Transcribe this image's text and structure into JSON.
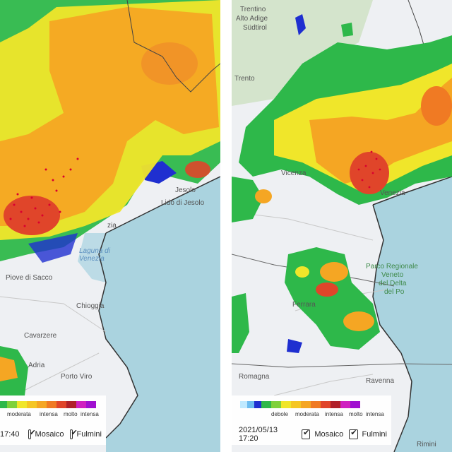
{
  "left_panel": {
    "places": [
      "Jesolo",
      "Lido di Jesolo",
      "Laguna di Venezia",
      "Piove di Sacco",
      "Chioggia",
      "Cavarzere",
      "Adria",
      "Porto Viro",
      "zia"
    ],
    "legend": {
      "labels": [
        "moderata",
        "intensa",
        "molto",
        "intensa"
      ]
    },
    "controls": {
      "time": "17:40",
      "mosaico": "Mosaico",
      "fulmini": "Fulmini"
    }
  },
  "right_panel": {
    "places": [
      "Trentino",
      "Alto Adige",
      "Südtirol",
      "Trento",
      "Vicenza",
      "Venezia",
      "Parco Regionale",
      "Veneto",
      "del Delta",
      "del Po",
      "Ferrara",
      "Ravenna",
      "Rimini",
      "Romagna"
    ],
    "legend": {
      "labels": [
        "debole",
        "moderata",
        "intensa",
        "molto",
        "intensa"
      ]
    },
    "controls": {
      "time": "2021/05/13 17:20",
      "mosaico": "Mosaico",
      "fulmini": "Fulmini"
    }
  },
  "colors": {
    "sea": "#aad3df",
    "land": "#eef0f3",
    "rain_green": "#2eb84a",
    "rain_yellow": "#f0e62a",
    "rain_orange": "#f5a623",
    "rain_red": "#e0452a",
    "rain_blue": "#1f2fd0",
    "lightning": "#d9002f"
  }
}
